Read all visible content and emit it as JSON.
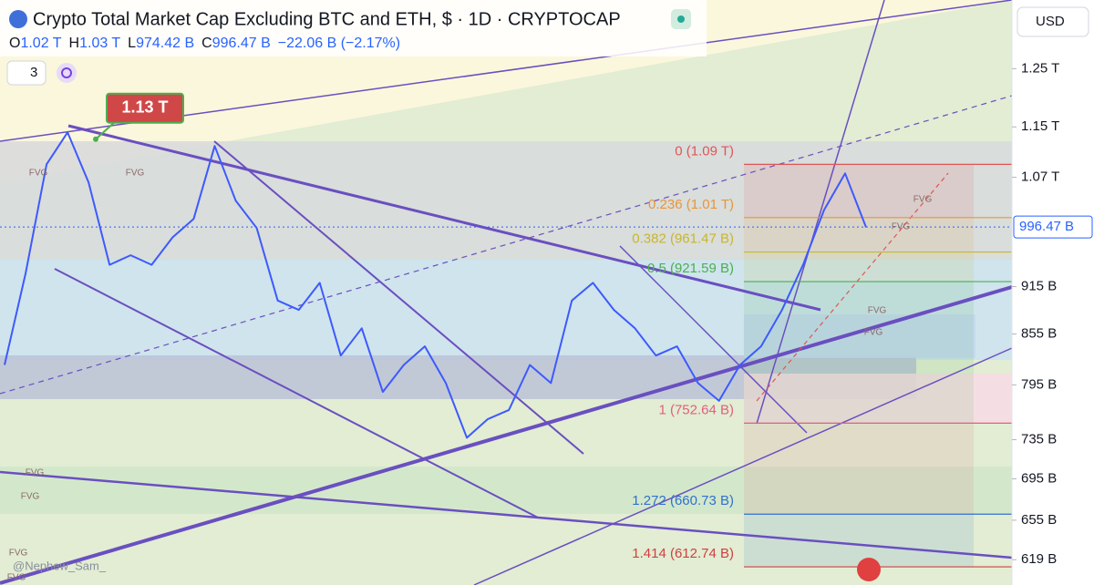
{
  "chart_data": {
    "type": "line",
    "title": "Crypto Total Market Cap Excluding BTC and ETH, $ · 1D · CRYPTOCAP",
    "ohlc": [
      {
        "label": "O",
        "value": "1.02 T"
      },
      {
        "label": "H",
        "value": "1.03 T"
      },
      {
        "label": "L",
        "value": "974.42 B"
      },
      {
        "label": "C",
        "value": "996.47 B"
      }
    ],
    "change": "−22.06 B (−2.17%)",
    "indicator_count": "3",
    "currency": "USD",
    "log_scale": true,
    "ylim": [
      597,
      1379
    ],
    "yticks": [
      {
        "value": 1250,
        "label": "1.25 T"
      },
      {
        "value": 1150,
        "label": "1.15 T"
      },
      {
        "value": 1070,
        "label": "1.07 T"
      },
      {
        "value": 915,
        "label": "915 B"
      },
      {
        "value": 855,
        "label": "855 B"
      },
      {
        "value": 795,
        "label": "795 B"
      },
      {
        "value": 735,
        "label": "735 B"
      },
      {
        "value": 695,
        "label": "695 B"
      },
      {
        "value": 655,
        "label": "655 B"
      },
      {
        "value": 619,
        "label": "619 B"
      }
    ],
    "categories": [
      null,
      null,
      null,
      null,
      null,
      null,
      null,
      null,
      null,
      null,
      null,
      null,
      null,
      null,
      null,
      null,
      null,
      null,
      null,
      null,
      null,
      null,
      null,
      null,
      null,
      null,
      null,
      null,
      null,
      null,
      null,
      null,
      null,
      null,
      null,
      null,
      null,
      null,
      null,
      null,
      null,
      null
    ],
    "series": [
      {
        "name": null,
        "color": "#3d5afe",
        "values": [
          818,
          932,
          1090,
          1141,
          1062,
          944,
          957,
          944,
          982,
          1008,
          1119,
          1035,
          995,
          897,
          885,
          920,
          829,
          862,
          787,
          818,
          840,
          797,
          737,
          757,
          767,
          818,
          797,
          897,
          920,
          885,
          862,
          829,
          840,
          797,
          777,
          818,
          840,
          885,
          944,
          1021,
          1076,
          996
        ]
      }
    ],
    "last_price": {
      "value": 996.47,
      "label": "996.47 B"
    },
    "callout": {
      "value": 1130,
      "label": "1.13 T"
    },
    "fib_levels": [
      {
        "label": "0 (1.09 T)",
        "value": 1090,
        "color": "#e05555"
      },
      {
        "label": "0.236 (1.01 T)",
        "value": 1010,
        "color": "#e8953a"
      },
      {
        "label": "0.382 (961.47 B)",
        "value": 961.47,
        "color": "#c9b62c"
      },
      {
        "label": "0.5 (921.59 B)",
        "value": 921.59,
        "color": "#4caf50"
      },
      {
        "label": "1 (752.64 B)",
        "value": 752.64,
        "color": "#e0607e"
      },
      {
        "label": "1.272 (660.73 B)",
        "value": 660.73,
        "color": "#3070d0"
      },
      {
        "label": "1.414 (612.74 B)",
        "value": 612.74,
        "color": "#d04040"
      }
    ],
    "annotations": [
      "FVG",
      "FVG",
      "FVG",
      "FVG",
      "FVG",
      "FVG",
      "FVG",
      "FVG",
      "FVG",
      "FVG"
    ],
    "watermark": "@Nephew_Sam_"
  }
}
